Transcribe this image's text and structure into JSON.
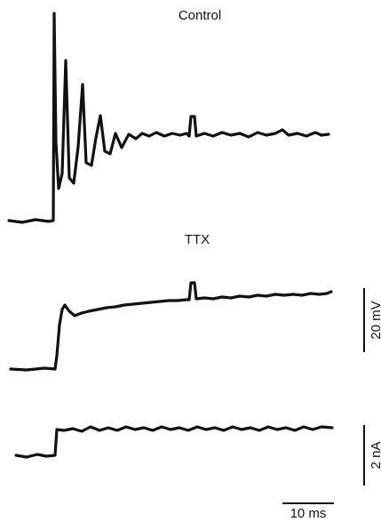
{
  "panels": [
    {
      "label": "Control"
    },
    {
      "label": "TTX"
    }
  ],
  "scale_bars": {
    "voltage": "20 mV",
    "current": "2 nA",
    "time": "10 ms"
  }
}
